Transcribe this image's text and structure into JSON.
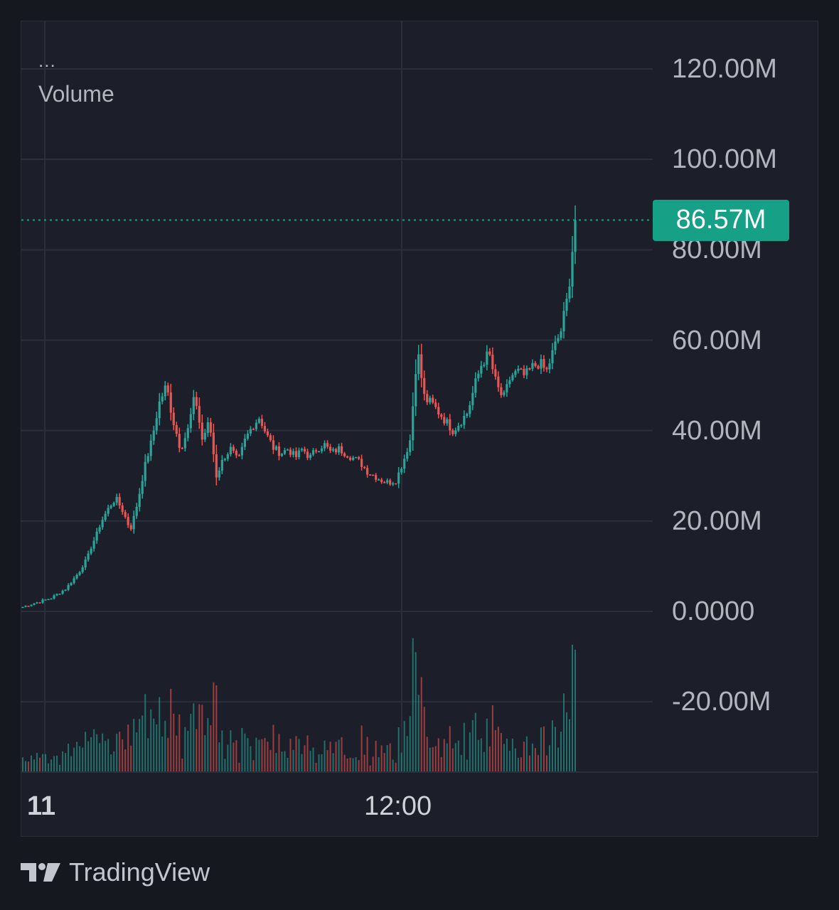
{
  "legend": {
    "dots": "...",
    "label": "Volume"
  },
  "colors": {
    "up": "#26a69a",
    "down": "#ef5350",
    "last_price": "#16a085",
    "grid": "#2b2f3c",
    "background": "#1c1e29"
  },
  "brand": {
    "name": "TradingView",
    "icon": "tradingview-logo-icon"
  },
  "chart_data": {
    "type": "candlestick",
    "title": "",
    "ylabel": "",
    "xlabel": "",
    "ylim": [
      -35000000,
      130000000
    ],
    "y_ticks": [
      "120.00M",
      "100.00M",
      "80.00M",
      "60.00M",
      "40.00M",
      "20.00M",
      "0.0000",
      "-20.00M"
    ],
    "y_tick_values": [
      120000000,
      100000000,
      80000000,
      60000000,
      40000000,
      20000000,
      0,
      -20000000
    ],
    "x_ticks": [
      "11",
      "12:00"
    ],
    "grid": true,
    "last_value": 86570000,
    "last_value_label": "86.57M",
    "series": [
      {
        "name": "Volume",
        "values": [
          1,
          1.5,
          2,
          2.5,
          3,
          4,
          5,
          7,
          9,
          12,
          16,
          20,
          23,
          25,
          22,
          18,
          24,
          32,
          38,
          46,
          50,
          42,
          36,
          40,
          48,
          38,
          42,
          30,
          34,
          36,
          33,
          38,
          41,
          43,
          39,
          36,
          35,
          36,
          34,
          36,
          34,
          36,
          37,
          35,
          36,
          35,
          34,
          33,
          31,
          30,
          29,
          28.5,
          29,
          33,
          38,
          58,
          47,
          46,
          44,
          42,
          40,
          42,
          44,
          50,
          55,
          57,
          50,
          47,
          52,
          53,
          52,
          54,
          55,
          53,
          58,
          62,
          70,
          86.57
        ]
      }
    ]
  }
}
